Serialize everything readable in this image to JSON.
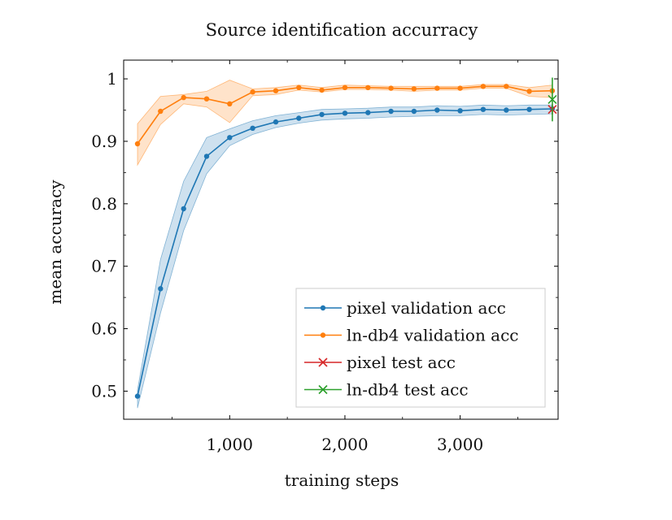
{
  "chart_data": {
    "type": "line",
    "title": "Source identification accurracy",
    "xlabel": "training steps",
    "ylabel": "mean accuracy",
    "xlim": [
      80,
      3850
    ],
    "ylim": [
      0.455,
      1.03
    ],
    "x_ticks": [
      1000,
      2000,
      3000
    ],
    "x_tick_labels": [
      "1,000",
      "2,000",
      "3,000"
    ],
    "x_minor_ticks": [
      500,
      1500,
      2500,
      3500
    ],
    "y_ticks": [
      0.5,
      0.6,
      0.7,
      0.8,
      0.9,
      1.0
    ],
    "y_tick_labels": [
      "0.5",
      "0.6",
      "0.7",
      "0.8",
      "0.9",
      "1"
    ],
    "y_minor_ticks": [
      0.55,
      0.65,
      0.75,
      0.85,
      0.95
    ],
    "legend_position": "bottom-right",
    "series": [
      {
        "name": "pixel validation acc",
        "color": "#1f77b4",
        "marker": "dot",
        "x": [
          200,
          400,
          600,
          800,
          1000,
          1200,
          1400,
          1600,
          1800,
          2000,
          2200,
          2400,
          2600,
          2800,
          3000,
          3200,
          3400,
          3600,
          3800
        ],
        "y": [
          0.492,
          0.664,
          0.792,
          0.876,
          0.906,
          0.921,
          0.931,
          0.937,
          0.943,
          0.945,
          0.946,
          0.948,
          0.948,
          0.95,
          0.949,
          0.951,
          0.95,
          0.951,
          0.952
        ],
        "lower": [
          0.473,
          0.625,
          0.757,
          0.848,
          0.893,
          0.911,
          0.922,
          0.929,
          0.934,
          0.936,
          0.937,
          0.939,
          0.94,
          0.941,
          0.941,
          0.943,
          0.942,
          0.943,
          0.944
        ],
        "upper": [
          0.502,
          0.711,
          0.836,
          0.906,
          0.92,
          0.933,
          0.941,
          0.946,
          0.951,
          0.952,
          0.953,
          0.955,
          0.955,
          0.957,
          0.956,
          0.958,
          0.957,
          0.958,
          0.958
        ]
      },
      {
        "name": "ln-db4 validation acc",
        "color": "#ff7f0e",
        "marker": "dot",
        "x": [
          200,
          400,
          600,
          800,
          1000,
          1200,
          1400,
          1600,
          1800,
          2000,
          2200,
          2400,
          2600,
          2800,
          3000,
          3200,
          3400,
          3600,
          3800
        ],
        "y": [
          0.896,
          0.948,
          0.97,
          0.968,
          0.96,
          0.979,
          0.981,
          0.986,
          0.982,
          0.986,
          0.986,
          0.985,
          0.984,
          0.985,
          0.985,
          0.988,
          0.988,
          0.98,
          0.981
        ],
        "lower": [
          0.862,
          0.927,
          0.96,
          0.955,
          0.93,
          0.973,
          0.975,
          0.982,
          0.979,
          0.983,
          0.983,
          0.982,
          0.98,
          0.982,
          0.982,
          0.985,
          0.985,
          0.972,
          0.97
        ],
        "upper": [
          0.928,
          0.972,
          0.975,
          0.98,
          0.998,
          0.984,
          0.986,
          0.99,
          0.986,
          0.99,
          0.989,
          0.988,
          0.988,
          0.988,
          0.988,
          0.991,
          0.991,
          0.986,
          0.99
        ]
      }
    ],
    "test_points": [
      {
        "name": "pixel test acc",
        "color": "#d62728",
        "marker": "x",
        "x": 3800,
        "y": 0.951,
        "err": 0.008
      },
      {
        "name": "ln-db4 test acc",
        "color": "#2ca02c",
        "marker": "x",
        "x": 3800,
        "y": 0.967,
        "err": 0.035
      }
    ]
  }
}
